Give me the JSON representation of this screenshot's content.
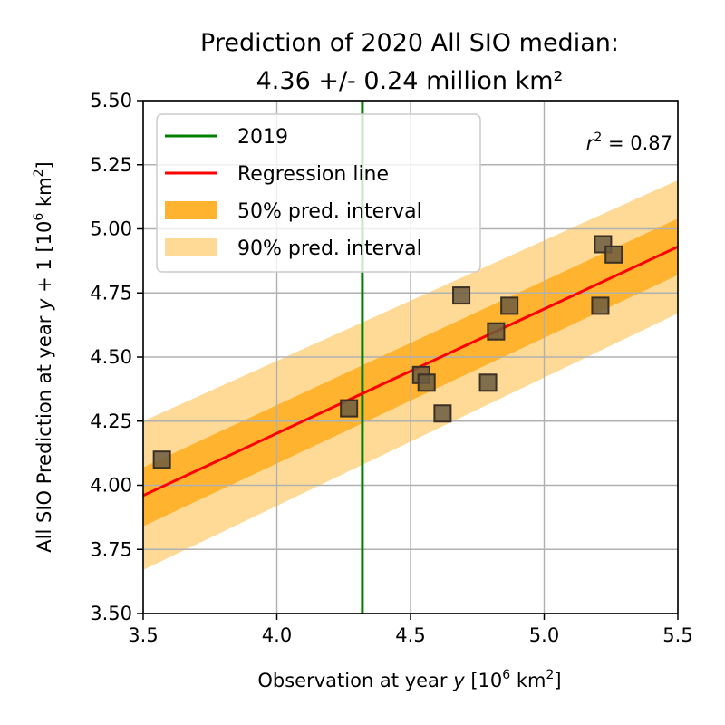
{
  "chart_data": {
    "type": "scatter",
    "title_line1": "Prediction of 2020 All SIO median:",
    "title_line2": "4.36 +/- 0.24 million km²",
    "xlabel": {
      "prefix": "Observation at year ",
      "var": "y",
      "unit_open": " [10",
      "unit_exp": "6",
      "unit_close": " km",
      "unit_exp2": "2",
      "unit_end": "]"
    },
    "ylabel": {
      "prefix": "All SIO Prediction at year ",
      "var": "y",
      "mid": " + 1 [10",
      "unit_exp": "6",
      "unit_close": " km",
      "unit_exp2": "2",
      "unit_end": "]"
    },
    "xlim": [
      3.5,
      5.5
    ],
    "ylim": [
      3.5,
      5.5
    ],
    "xticks": [
      3.5,
      4.0,
      4.5,
      5.0,
      5.5
    ],
    "xtick_labels": [
      "3.5",
      "4.0",
      "4.5",
      "5.0",
      "5.5"
    ],
    "yticks": [
      3.5,
      3.75,
      4.0,
      4.25,
      4.5,
      4.75,
      5.0,
      5.25,
      5.5
    ],
    "ytick_labels": [
      "3.50",
      "3.75",
      "4.00",
      "4.25",
      "4.50",
      "4.75",
      "5.00",
      "5.25",
      "5.50"
    ],
    "grid": true,
    "legend_placement": "upper-left",
    "legend": [
      {
        "label": "2019",
        "kind": "line",
        "color": "#008000"
      },
      {
        "label": "Regression line",
        "kind": "line",
        "color": "#ff0000"
      },
      {
        "label": "50% pred. interval",
        "kind": "patch",
        "color": "#ffb32e"
      },
      {
        "label": "90% pred. interval",
        "kind": "patch",
        "color": "#ffda96"
      }
    ],
    "annotation": {
      "var": "r",
      "exp": "2",
      "text": " = 0.87"
    },
    "vertical_line_x": 4.32,
    "regression": {
      "x": [
        3.5,
        5.5
      ],
      "y": [
        3.96,
        4.93
      ]
    },
    "pred_interval_50": {
      "x": [
        3.5,
        5.5
      ],
      "lower": [
        3.84,
        4.82
      ],
      "upper": [
        4.07,
        5.04
      ]
    },
    "pred_interval_90": {
      "x": [
        3.5,
        5.5
      ],
      "lower": [
        3.67,
        4.67
      ],
      "upper": [
        4.25,
        5.19
      ]
    },
    "points": [
      {
        "x": 3.57,
        "y": 4.1
      },
      {
        "x": 4.27,
        "y": 4.3
      },
      {
        "x": 4.54,
        "y": 4.43
      },
      {
        "x": 4.56,
        "y": 4.4
      },
      {
        "x": 4.62,
        "y": 4.28
      },
      {
        "x": 4.69,
        "y": 4.74
      },
      {
        "x": 4.79,
        "y": 4.4
      },
      {
        "x": 4.82,
        "y": 4.6
      },
      {
        "x": 4.87,
        "y": 4.7
      },
      {
        "x": 5.21,
        "y": 4.7
      },
      {
        "x": 5.22,
        "y": 4.94
      },
      {
        "x": 5.26,
        "y": 4.9
      }
    ],
    "colors": {
      "vertical_line": "#008000",
      "regression": "#ff0000",
      "band50": "#ffb32e",
      "band90": "#ffda96",
      "marker_fill": "#6b5a3f",
      "marker_edge": "#3a3024",
      "grid": "#b0b0b0"
    }
  }
}
